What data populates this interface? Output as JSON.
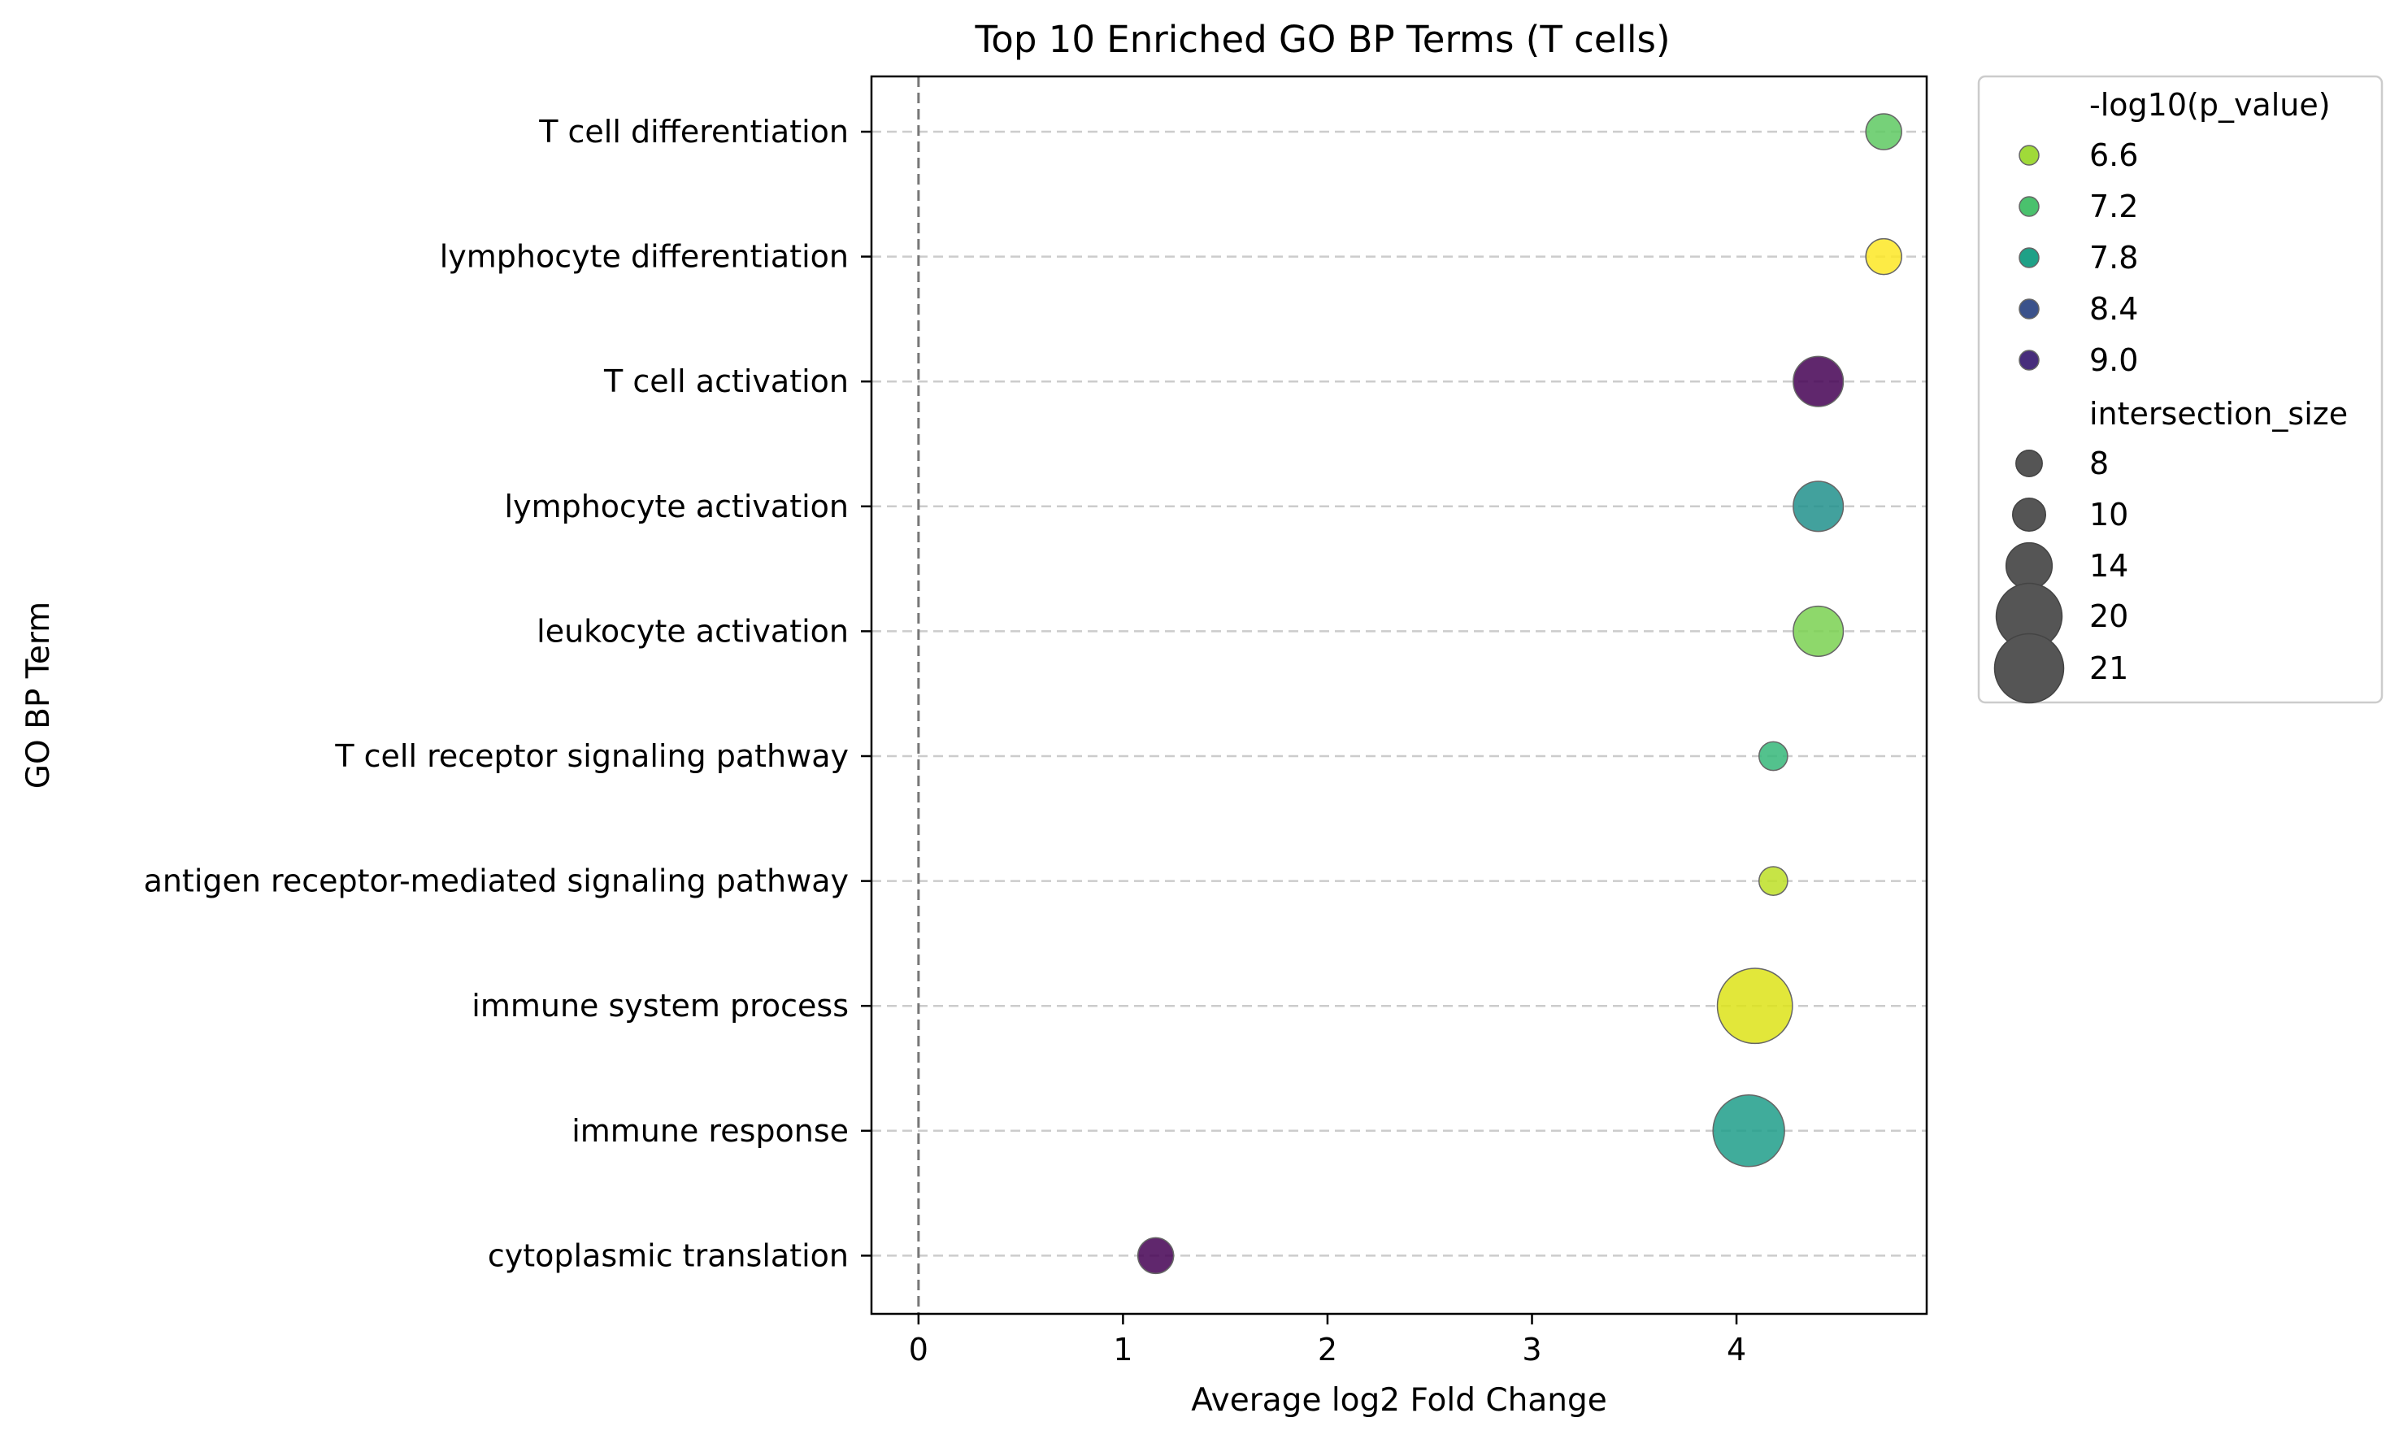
{
  "chart_data": {
    "type": "scatter",
    "title": "Top 10 Enriched GO BP Terms (T cells)",
    "xlabel": "Average log2 Fold Change",
    "ylabel": "GO BP Term",
    "xlim": [
      -0.23,
      4.93
    ],
    "x_ticks": [
      "0",
      "1",
      "2",
      "3",
      "4"
    ],
    "grid": "horizontal dashed",
    "reference_line": {
      "x": 0,
      "style": "dashed"
    },
    "categories": [
      "T cell differentiation",
      "lymphocyte differentiation",
      "T cell activation",
      "lymphocyte activation",
      "leukocyte activation",
      "T cell receptor signaling pathway",
      "antigen receptor-mediated signaling pathway",
      "immune system process",
      "immune response",
      "cytoplasmic translation"
    ],
    "points": [
      {
        "term": "T cell differentiation",
        "x": 4.72,
        "neg_log10_p": 7.2,
        "intersection_size": 10,
        "color": "#5ec962"
      },
      {
        "term": "lymphocyte differentiation",
        "x": 4.72,
        "neg_log10_p": 6.3,
        "intersection_size": 10,
        "color": "#fde725"
      },
      {
        "term": "T cell activation",
        "x": 4.4,
        "neg_log10_p": 9.3,
        "intersection_size": 14,
        "color": "#440154"
      },
      {
        "term": "lymphocyte activation",
        "x": 4.4,
        "neg_log10_p": 7.7,
        "intersection_size": 14,
        "color": "#21918c"
      },
      {
        "term": "leukocyte activation",
        "x": 4.4,
        "neg_log10_p": 6.8,
        "intersection_size": 14,
        "color": "#7ad151"
      },
      {
        "term": "T cell receptor signaling pathway",
        "x": 4.18,
        "neg_log10_p": 7.2,
        "intersection_size": 8,
        "color": "#35b779"
      },
      {
        "term": "antigen receptor-mediated signaling pathway",
        "x": 4.18,
        "neg_log10_p": 6.5,
        "intersection_size": 8,
        "color": "#bddf26"
      },
      {
        "term": "immune system process",
        "x": 4.09,
        "neg_log10_p": 6.4,
        "intersection_size": 21,
        "color": "#dde318"
      },
      {
        "term": "immune response",
        "x": 4.06,
        "neg_log10_p": 7.7,
        "intersection_size": 20,
        "color": "#1f9e89"
      },
      {
        "term": "cytoplasmic translation",
        "x": 1.16,
        "neg_log10_p": 9.3,
        "intersection_size": 10,
        "color": "#440154"
      }
    ],
    "legend": {
      "placement": "outside-right",
      "color_title": "-log10(p_value)",
      "color_entries": [
        {
          "label": "6.6",
          "color": "#a0da39"
        },
        {
          "label": "7.2",
          "color": "#4ac16d"
        },
        {
          "label": "7.8",
          "color": "#1fa187"
        },
        {
          "label": "8.4",
          "color": "#3b528b"
        },
        {
          "label": "9.0",
          "color": "#472d7b"
        }
      ],
      "size_title": "intersection_size",
      "size_entries": [
        {
          "label": "8",
          "value": 8
        },
        {
          "label": "10",
          "value": 10
        },
        {
          "label": "14",
          "value": 14
        },
        {
          "label": "20",
          "value": 20
        },
        {
          "label": "21",
          "value": 21
        }
      ],
      "size_marker_color": "#555555"
    }
  }
}
